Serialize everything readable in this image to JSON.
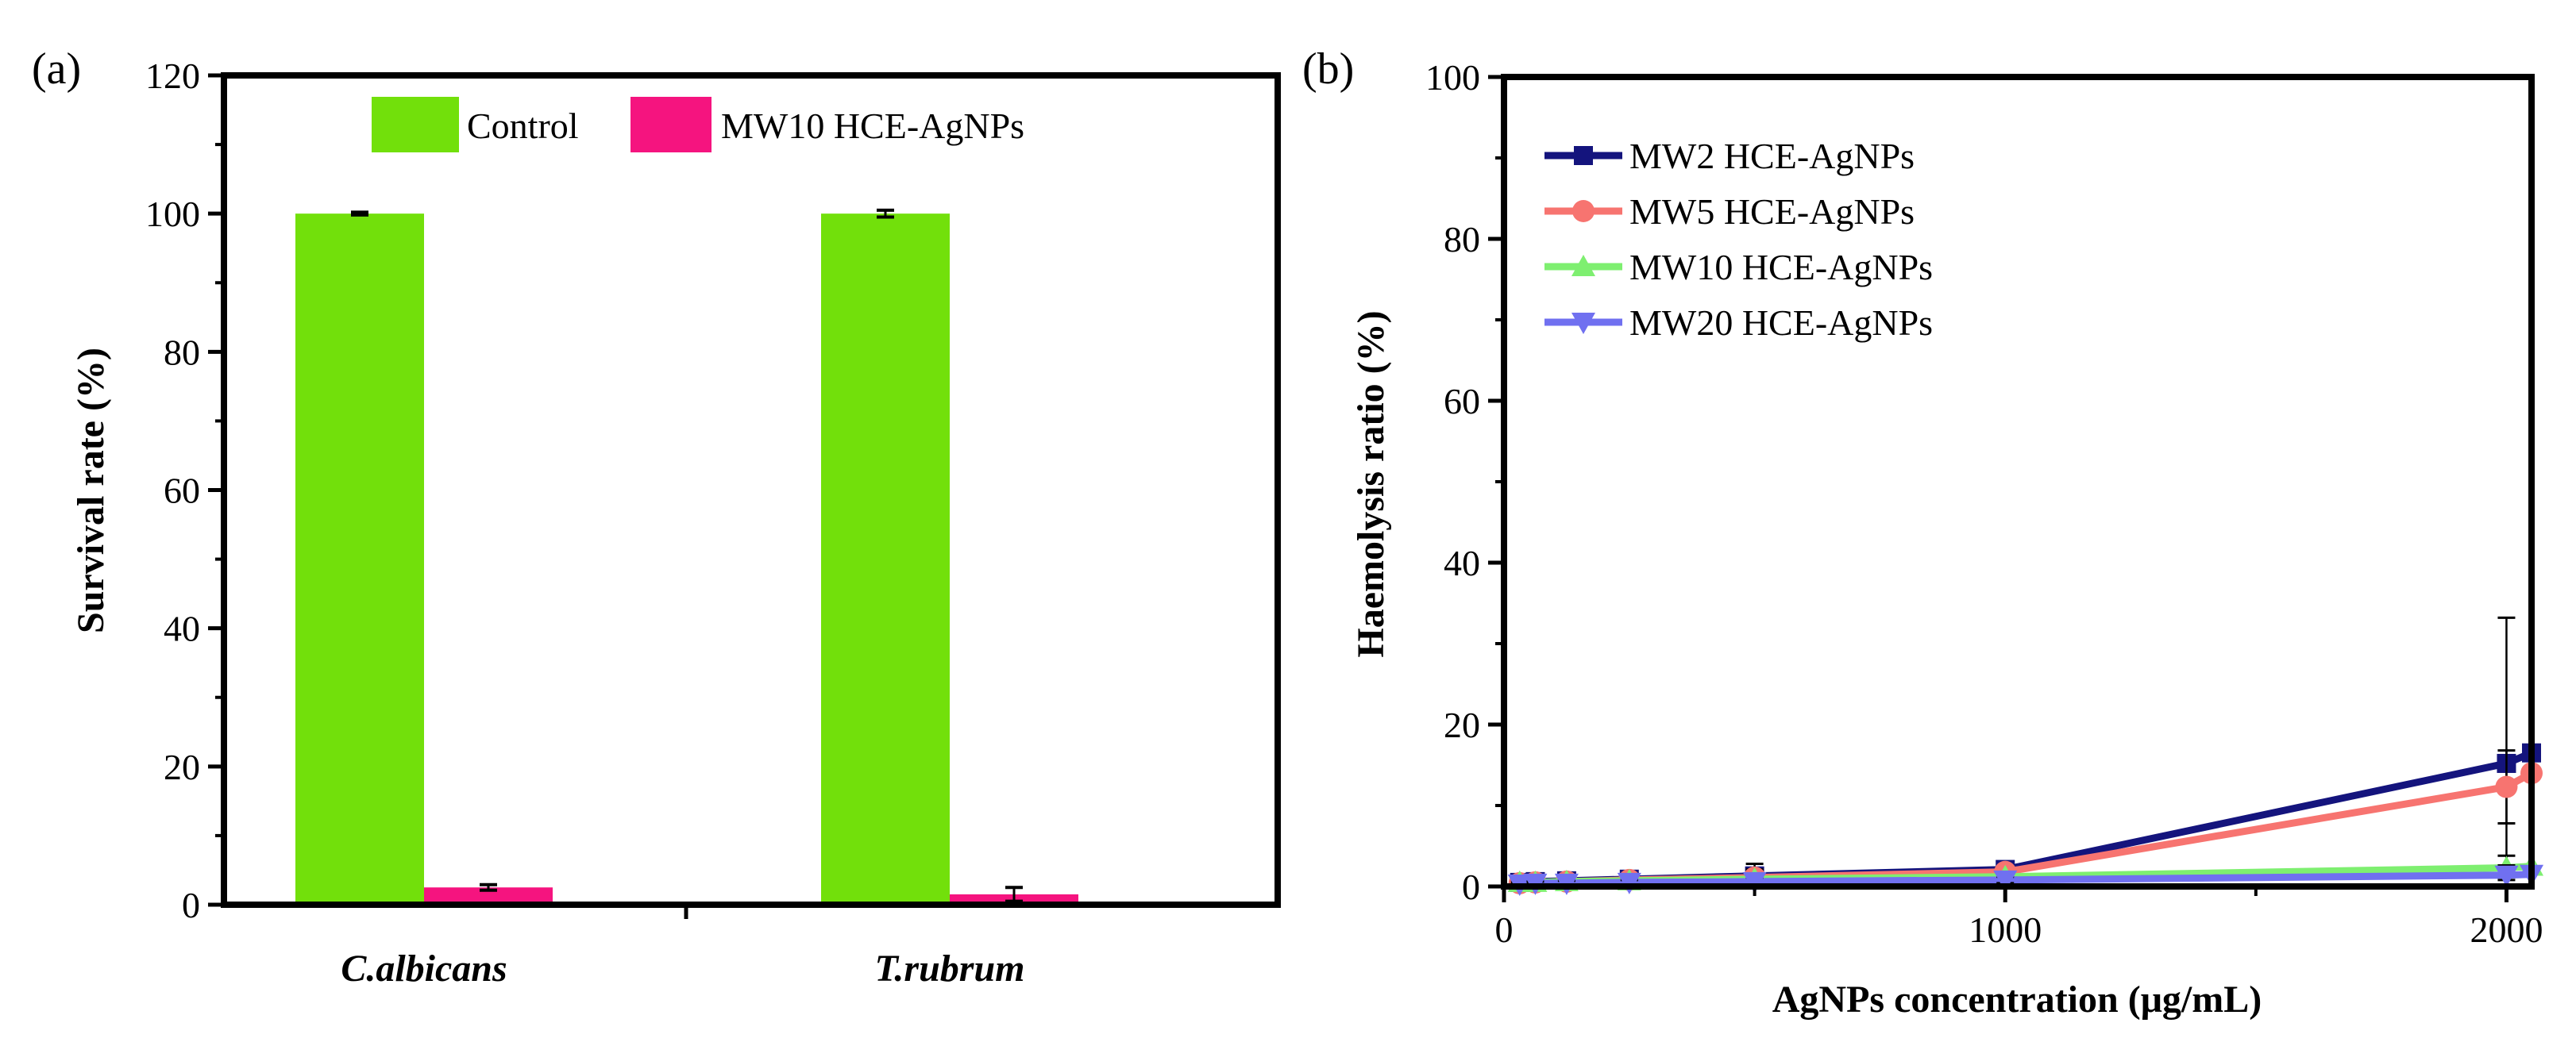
{
  "chart_data": [
    {
      "type": "bar",
      "panel_label": "(a)",
      "title": "",
      "xlabel": "",
      "ylabel": "Survival rate (%)",
      "ylim": [
        0,
        120
      ],
      "yticks": [
        0,
        20,
        40,
        60,
        80,
        100,
        120
      ],
      "categories": [
        "C.albicans",
        "T.rubrum"
      ],
      "series": [
        {
          "name": "Control",
          "color": "#72e00b",
          "values": [
            100,
            100
          ],
          "errors": [
            0.2,
            0.5
          ]
        },
        {
          "name": "MW10 HCE-AgNPs",
          "color": "#f5147f",
          "values": [
            2.5,
            1.5
          ],
          "errors": [
            0.4,
            1.0
          ]
        }
      ],
      "legend": "top-center"
    },
    {
      "type": "line",
      "panel_label": "(b)",
      "title": "",
      "xlabel": "AgNPs concentration (μg/mL)",
      "ylabel": "Haemolysis ratio (%)",
      "xlim": [
        0,
        2050
      ],
      "ylim": [
        0,
        100
      ],
      "xticks": [
        0,
        1000,
        2000
      ],
      "yticks": [
        0,
        20,
        40,
        60,
        80,
        100
      ],
      "x": [
        31.25,
        62.5,
        125,
        250,
        500,
        1000,
        2000,
        2050
      ],
      "series": [
        {
          "name": "MW2 HCE-AgNPs",
          "color": "#14147d",
          "marker": "square",
          "values": [
            0.5,
            0.6,
            0.7,
            0.9,
            1.3,
            2.1,
            15.2,
            16.5
          ],
          "errors": [
            0.3,
            0.3,
            0.4,
            0.6,
            1.5,
            0.8,
            18.0,
            0
          ]
        },
        {
          "name": "MW5 HCE-AgNPs",
          "color": "#f77470",
          "marker": "circle",
          "values": [
            0.4,
            0.5,
            0.6,
            0.8,
            1.1,
            1.8,
            12.3,
            14.0
          ],
          "errors": [
            0.3,
            0.3,
            0.4,
            0.5,
            1.0,
            0.6,
            4.5,
            0
          ]
        },
        {
          "name": "MW10 HCE-AgNPs",
          "color": "#7eef70",
          "marker": "triangle-up",
          "values": [
            0.5,
            0.5,
            0.6,
            0.7,
            0.9,
            1.2,
            2.3,
            2.5
          ],
          "errors": [
            0.3,
            0.3,
            0.3,
            0.4,
            0.6,
            0.5,
            1.5,
            0
          ]
        },
        {
          "name": "MW20 HCE-AgNPs",
          "color": "#7070f0",
          "marker": "triangle-down",
          "values": [
            0.3,
            0.4,
            0.4,
            0.5,
            0.6,
            0.8,
            1.4,
            1.5
          ],
          "errors": [
            0.2,
            0.2,
            0.3,
            0.3,
            0.5,
            0.4,
            1.2,
            0
          ]
        }
      ],
      "legend": "top-left"
    }
  ]
}
